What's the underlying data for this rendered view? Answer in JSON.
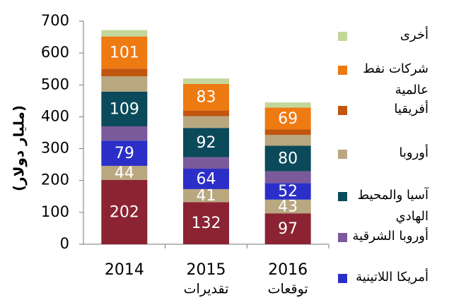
{
  "chart_data": {
    "type": "stacked_bar",
    "y_label": "(مليار دولار)",
    "categories": [
      "2014",
      "2015",
      "2016"
    ],
    "category_sublabels": [
      null,
      "تقديرات",
      "توقعات"
    ],
    "ylim": [
      0,
      700
    ],
    "yticks": [
      0,
      100,
      200,
      300,
      400,
      500,
      600,
      700
    ],
    "series": [
      {
        "color": "#8b2332",
        "values": [
          202,
          132,
          97
        ],
        "labeled": true
      },
      {
        "color": "#b8a77f",
        "values": [
          44,
          41,
          43
        ],
        "labeled": true
      },
      {
        "name": "أمريكا اللاتينية",
        "color": "#2b2fc8",
        "values": [
          79,
          64,
          52
        ],
        "labeled": true
      },
      {
        "name": "أوروبا الشرقية",
        "color": "#7b5a9b",
        "values": [
          45,
          36,
          37
        ],
        "labeled": false
      },
      {
        "name": "آسيا والمحيط الهادي",
        "color": "#0b4a5a",
        "values": [
          109,
          92,
          80
        ],
        "labeled": true
      },
      {
        "name": "أوروبا",
        "color": "#b8a77f",
        "values": [
          48,
          37,
          34
        ],
        "labeled": false
      },
      {
        "name": "أفريقيا",
        "color": "#c2560e",
        "values": [
          24,
          18,
          17
        ],
        "labeled": false
      },
      {
        "name": "شركات نفط عالمية",
        "color": "#ee7a12",
        "values": [
          101,
          83,
          69
        ],
        "labeled": true
      },
      {
        "name": "أخرى",
        "color": "#c4d79b",
        "values": [
          20,
          17,
          16
        ],
        "labeled": false
      }
    ]
  }
}
